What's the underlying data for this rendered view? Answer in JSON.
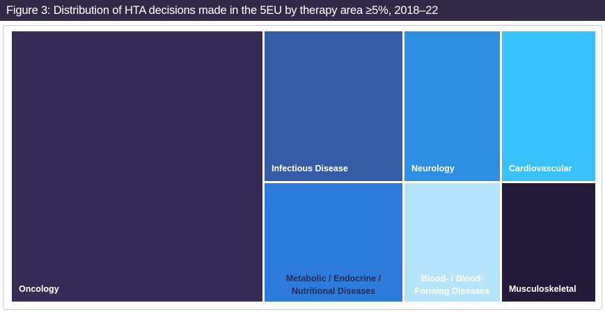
{
  "header": {
    "title": "Figure 3: Distribution of HTA decisions made in the 5EU by therapy area ≥5%, 2018–22",
    "bg_color": "#312b47",
    "text_color": "#ffffff"
  },
  "chart_data": {
    "type": "treemap",
    "title": "Distribution of HTA decisions made in the 5EU by therapy area ≥5%, 2018–22",
    "value_note": "No numeric labels shown; share percentages estimated from cell areas",
    "legend": "none",
    "cells": [
      {
        "label": "Oncology",
        "share_pct_est": 43,
        "color": "#372b58",
        "label_color": "#ffffff",
        "label_position": "bottom-left"
      },
      {
        "label": "Infectious Disease",
        "share_pct_est": 13,
        "color": "#355da5",
        "label_color": "#ffffff",
        "label_position": "bottom-left"
      },
      {
        "label": "Metabolic / Endocrine / Nutritional Diseases",
        "share_pct_est": 10,
        "color": "#2d7cdb",
        "label_color": "#2b2b55",
        "label_position": "bottom-center"
      },
      {
        "label": "Neurology",
        "share_pct_est": 9,
        "color": "#2d90e2",
        "label_color": "#ffffff",
        "label_position": "bottom-left"
      },
      {
        "label": "Blood- / Blood-Forming Diseases",
        "share_pct_est": 7,
        "color": "#b5e5fa",
        "label_color": "#ffffff",
        "label_position": "bottom-center"
      },
      {
        "label": "Cardiovascular",
        "share_pct_est": 9,
        "color": "#38c1fc",
        "label_color": "#ffffff",
        "label_position": "bottom-left"
      },
      {
        "label": "Musculoskeletal",
        "share_pct_est": 7,
        "color": "#211b39",
        "label_color": "#ffffff",
        "label_position": "bottom-left"
      }
    ],
    "frame": {
      "border_color": "#c9cbce",
      "background": "#ffffff"
    }
  }
}
